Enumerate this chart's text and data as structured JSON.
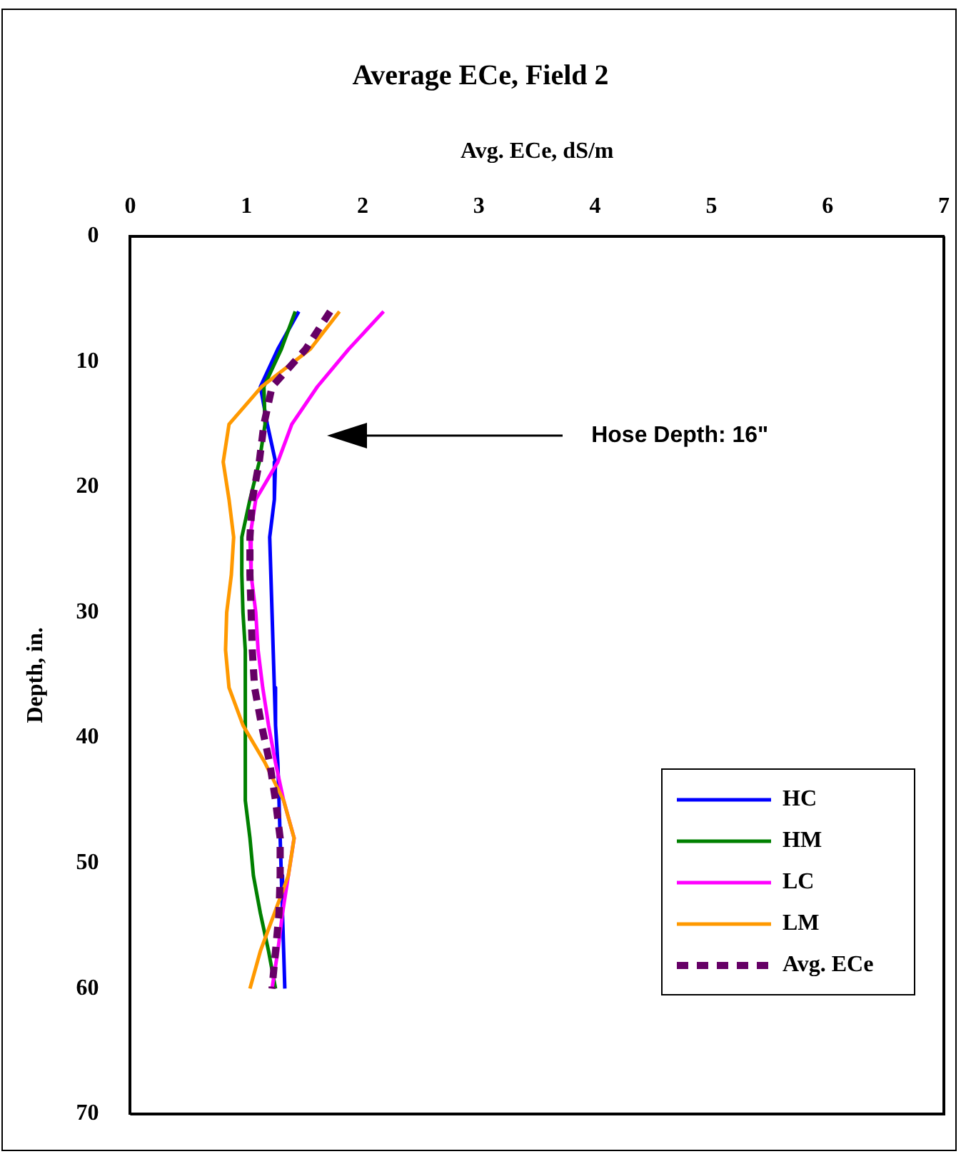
{
  "chart_data": {
    "type": "line",
    "title": "Average ECe, Field 2",
    "xlabel": "Avg. ECe, dS/m",
    "ylabel": "Depth, in.",
    "xlim": [
      0,
      7
    ],
    "xticks": [
      0,
      1,
      2,
      3,
      4,
      5,
      6,
      7
    ],
    "ylim": [
      70,
      0
    ],
    "yticks": [
      0,
      10,
      20,
      30,
      40,
      50,
      60,
      70
    ],
    "grid": false,
    "legend": "bottom right",
    "marker": "none",
    "annotations": [
      "Hose Depth: 16\""
    ],
    "series": [
      {
        "name": "HC",
        "color": "#0000ff",
        "line_style": "solid",
        "x": [
          1.45,
          1.27,
          1.12,
          1.18,
          1.25,
          1.24,
          1.2,
          1.21,
          1.22,
          1.23,
          1.24,
          1.25,
          1.27,
          1.28,
          1.29,
          1.3,
          1.31,
          1.32,
          1.33
        ],
        "values": [
          6,
          9,
          12,
          15,
          18,
          21,
          24,
          27,
          30,
          33,
          36,
          39,
          42,
          45,
          48,
          51,
          54,
          57,
          60
        ]
      },
      {
        "name": "HM",
        "color": "#008000",
        "line_style": "solid",
        "x": [
          1.42,
          1.3,
          1.15,
          1.16,
          1.11,
          1.03,
          0.96,
          0.96,
          0.97,
          0.99,
          0.99,
          0.99,
          0.99,
          0.99,
          1.03,
          1.06,
          1.12,
          1.19,
          1.25
        ],
        "values": [
          6,
          9,
          12,
          15,
          18,
          21,
          24,
          27,
          30,
          33,
          36,
          39,
          42,
          45,
          48,
          51,
          54,
          57,
          60
        ]
      },
      {
        "name": "LC",
        "color": "#ff00ff",
        "line_style": "solid",
        "x": [
          2.18,
          1.88,
          1.61,
          1.39,
          1.27,
          1.08,
          1.03,
          1.04,
          1.08,
          1.1,
          1.14,
          1.19,
          1.25,
          1.32,
          1.41,
          1.36,
          1.31,
          1.27,
          1.22
        ],
        "values": [
          6,
          9,
          12,
          15,
          18,
          21,
          24,
          27,
          30,
          33,
          36,
          39,
          42,
          45,
          48,
          51,
          54,
          57,
          60
        ]
      },
      {
        "name": "LM",
        "color": "#ff9900",
        "line_style": "solid",
        "x": [
          1.8,
          1.55,
          1.13,
          0.85,
          0.8,
          0.85,
          0.89,
          0.87,
          0.83,
          0.82,
          0.85,
          0.97,
          1.16,
          1.32,
          1.41,
          1.36,
          1.24,
          1.12,
          1.03
        ],
        "values": [
          6,
          9,
          12,
          15,
          18,
          21,
          24,
          27,
          30,
          33,
          36,
          39,
          42,
          45,
          48,
          51,
          54,
          57,
          60
        ]
      },
      {
        "name": "Avg. ECe",
        "color": "#660066",
        "line_style": "dashed",
        "x": [
          1.72,
          1.51,
          1.22,
          1.15,
          1.11,
          1.05,
          1.03,
          1.03,
          1.04,
          1.05,
          1.07,
          1.13,
          1.2,
          1.25,
          1.29,
          1.29,
          1.28,
          1.25,
          1.22
        ],
        "values": [
          6,
          9,
          12,
          15,
          18,
          21,
          24,
          27,
          30,
          33,
          36,
          39,
          42,
          45,
          48,
          51,
          54,
          57,
          60
        ]
      }
    ]
  }
}
